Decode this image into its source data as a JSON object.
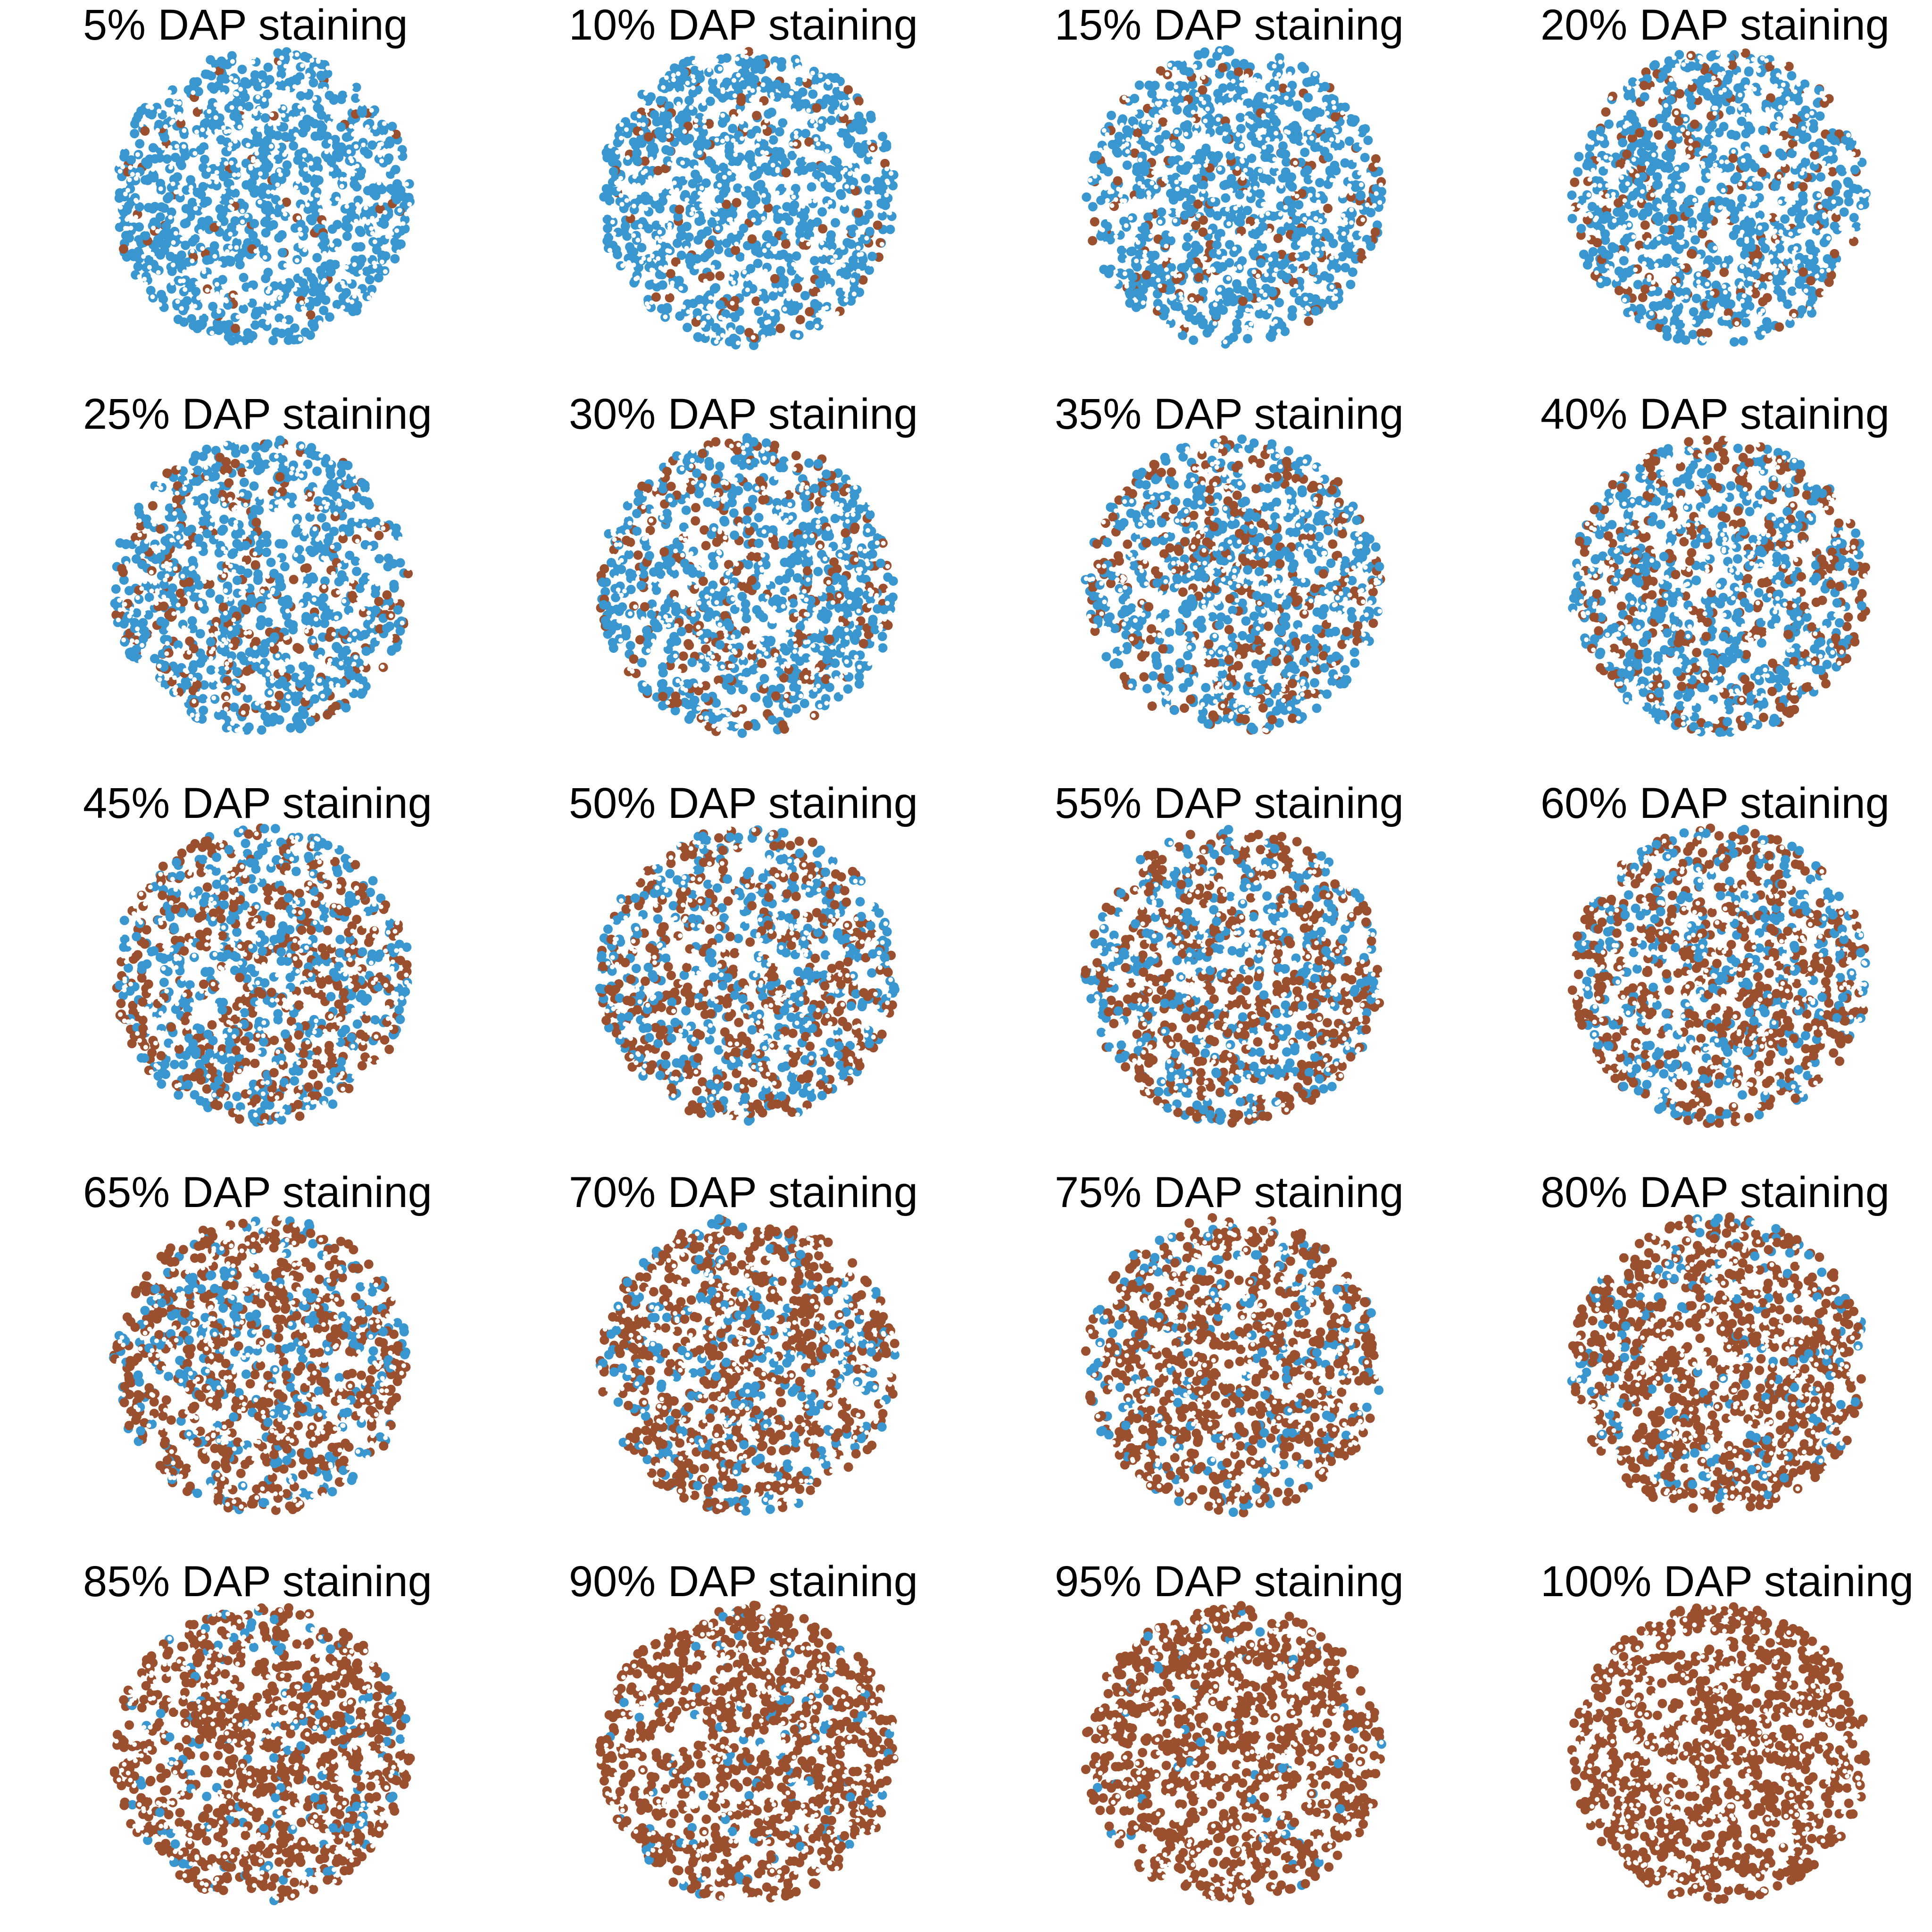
{
  "chart_data": {
    "type": "scatter",
    "layout": "5x4 grid of circular dot panels",
    "dot_colors": {
      "stained": "#9a4f2f",
      "unstained": "#3a96cf",
      "gap": "#ffffff"
    },
    "axes_visible": false,
    "panels": [
      {
        "title": "5% DAP staining",
        "dap_fraction": 0.05
      },
      {
        "title": "10% DAP staining",
        "dap_fraction": 0.1
      },
      {
        "title": "15% DAP staining",
        "dap_fraction": 0.15
      },
      {
        "title": "20% DAP staining",
        "dap_fraction": 0.2
      },
      {
        "title": "25% DAP staining",
        "dap_fraction": 0.25
      },
      {
        "title": "30% DAP staining",
        "dap_fraction": 0.3
      },
      {
        "title": "35% DAP staining",
        "dap_fraction": 0.35
      },
      {
        "title": "40% DAP staining",
        "dap_fraction": 0.4
      },
      {
        "title": "45% DAP staining",
        "dap_fraction": 0.45
      },
      {
        "title": "50% DAP staining",
        "dap_fraction": 0.5
      },
      {
        "title": "55% DAP staining",
        "dap_fraction": 0.55
      },
      {
        "title": "60% DAP staining",
        "dap_fraction": 0.6
      },
      {
        "title": "65% DAP staining",
        "dap_fraction": 0.65
      },
      {
        "title": "70% DAP staining",
        "dap_fraction": 0.7
      },
      {
        "title": "75% DAP staining",
        "dap_fraction": 0.75
      },
      {
        "title": "80% DAP staining",
        "dap_fraction": 0.8
      },
      {
        "title": "85% DAP staining",
        "dap_fraction": 0.85
      },
      {
        "title": "90% DAP staining",
        "dap_fraction": 0.9
      },
      {
        "title": "95% DAP staining",
        "dap_fraction": 0.95
      },
      {
        "title": "100% DAP staining",
        "dap_fraction": 1.0
      }
    ]
  }
}
